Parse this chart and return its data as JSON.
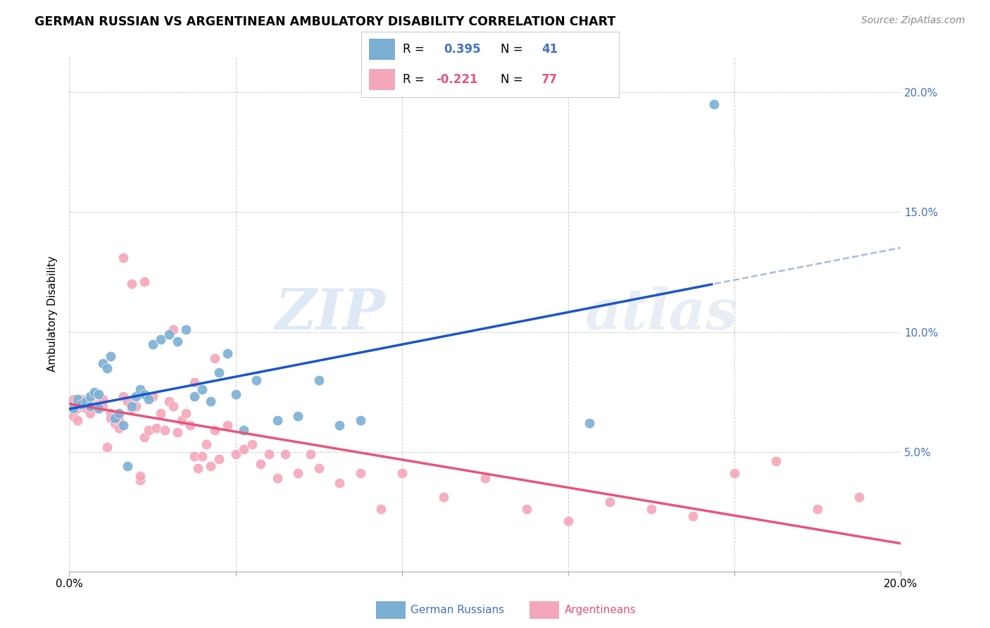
{
  "title": "GERMAN RUSSIAN VS ARGENTINEAN AMBULATORY DISABILITY CORRELATION CHART",
  "source": "Source: ZipAtlas.com",
  "ylabel": "Ambulatory Disability",
  "xmin": 0.0,
  "xmax": 0.2,
  "ymin": 0.0,
  "ymax": 0.215,
  "yticks": [
    0.05,
    0.1,
    0.15,
    0.2
  ],
  "ytick_labels": [
    "5.0%",
    "10.0%",
    "15.0%",
    "20.0%"
  ],
  "blue_color": "#7bafd4",
  "pink_color": "#f4a7b9",
  "blue_line_color": "#1a56cc",
  "pink_line_color": "#e8547a",
  "dashed_line_color": "#aabbdd",
  "watermark_zip": "ZIP",
  "watermark_atlas": "atlas",
  "blue_r": "0.395",
  "blue_n": "41",
  "pink_r": "-0.221",
  "pink_n": "77",
  "blue_points_x": [
    0.001,
    0.002,
    0.003,
    0.004,
    0.005,
    0.005,
    0.006,
    0.007,
    0.007,
    0.008,
    0.009,
    0.01,
    0.011,
    0.012,
    0.013,
    0.014,
    0.015,
    0.016,
    0.017,
    0.018,
    0.019,
    0.02,
    0.022,
    0.024,
    0.026,
    0.028,
    0.03,
    0.032,
    0.034,
    0.036,
    0.038,
    0.04,
    0.042,
    0.045,
    0.05,
    0.055,
    0.06,
    0.065,
    0.07,
    0.125,
    0.155
  ],
  "blue_points_y": [
    0.068,
    0.072,
    0.07,
    0.071,
    0.073,
    0.069,
    0.075,
    0.074,
    0.068,
    0.087,
    0.085,
    0.09,
    0.064,
    0.066,
    0.061,
    0.044,
    0.069,
    0.073,
    0.076,
    0.074,
    0.072,
    0.095,
    0.097,
    0.099,
    0.096,
    0.101,
    0.073,
    0.076,
    0.071,
    0.083,
    0.091,
    0.074,
    0.059,
    0.08,
    0.063,
    0.065,
    0.08,
    0.061,
    0.063,
    0.062,
    0.195
  ],
  "pink_points_x": [
    0.001,
    0.001,
    0.002,
    0.002,
    0.003,
    0.003,
    0.004,
    0.005,
    0.005,
    0.006,
    0.007,
    0.007,
    0.008,
    0.008,
    0.009,
    0.01,
    0.01,
    0.011,
    0.012,
    0.012,
    0.013,
    0.014,
    0.015,
    0.015,
    0.016,
    0.017,
    0.017,
    0.018,
    0.019,
    0.02,
    0.021,
    0.022,
    0.023,
    0.024,
    0.025,
    0.026,
    0.027,
    0.028,
    0.029,
    0.03,
    0.031,
    0.032,
    0.033,
    0.034,
    0.035,
    0.036,
    0.038,
    0.04,
    0.042,
    0.044,
    0.046,
    0.048,
    0.05,
    0.052,
    0.055,
    0.058,
    0.06,
    0.065,
    0.07,
    0.075,
    0.08,
    0.09,
    0.1,
    0.11,
    0.12,
    0.13,
    0.14,
    0.15,
    0.16,
    0.17,
    0.18,
    0.19,
    0.013,
    0.018,
    0.025,
    0.03,
    0.035
  ],
  "pink_points_y": [
    0.072,
    0.065,
    0.068,
    0.063,
    0.069,
    0.072,
    0.068,
    0.071,
    0.066,
    0.074,
    0.07,
    0.068,
    0.072,
    0.069,
    0.052,
    0.066,
    0.064,
    0.062,
    0.06,
    0.063,
    0.073,
    0.071,
    0.068,
    0.12,
    0.069,
    0.038,
    0.04,
    0.056,
    0.059,
    0.073,
    0.06,
    0.066,
    0.059,
    0.071,
    0.069,
    0.058,
    0.063,
    0.066,
    0.061,
    0.048,
    0.043,
    0.048,
    0.053,
    0.044,
    0.059,
    0.047,
    0.061,
    0.049,
    0.051,
    0.053,
    0.045,
    0.049,
    0.039,
    0.049,
    0.041,
    0.049,
    0.043,
    0.037,
    0.041,
    0.026,
    0.041,
    0.031,
    0.039,
    0.026,
    0.021,
    0.029,
    0.026,
    0.023,
    0.041,
    0.046,
    0.026,
    0.031,
    0.131,
    0.121,
    0.101,
    0.079,
    0.089
  ]
}
